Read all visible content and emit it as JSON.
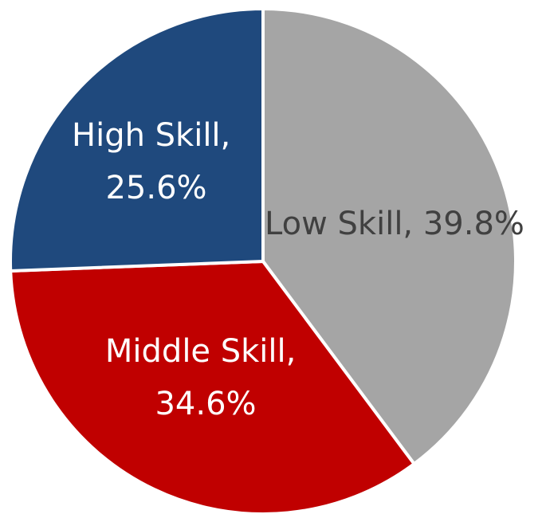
{
  "chart_data": {
    "type": "pie",
    "values": [
      39.8,
      34.6,
      25.6
    ],
    "value_labels": [
      "Low Skill, 39.8%",
      "Middle Skill, 34.6%",
      "High Skill, 25.6%"
    ],
    "colors": [
      "#a5a5a5",
      "#c00000",
      "#1f497d"
    ]
  }
}
